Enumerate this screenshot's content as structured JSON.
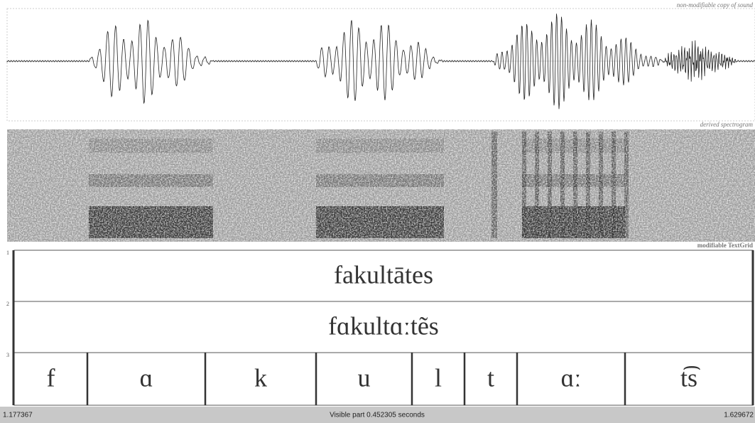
{
  "panes": {
    "sound": "non-modifiable copy of sound",
    "spectrogram": "derived spectrogram",
    "textgrid": "modifiable TextGrid"
  },
  "tiers": [
    {
      "number": "1",
      "intervals": [
        "fakultātes"
      ]
    },
    {
      "number": "2",
      "intervals": [
        "fɑkultɑːtẽs"
      ]
    },
    {
      "number": "3",
      "intervals": [
        "f",
        "ɑ",
        "k",
        "u",
        "l",
        "t",
        "ɑː",
        "t͡s"
      ]
    }
  ],
  "status": {
    "start": "1.177367",
    "visible": "Visible part 0.452305 seconds",
    "end": "1.629672"
  }
}
